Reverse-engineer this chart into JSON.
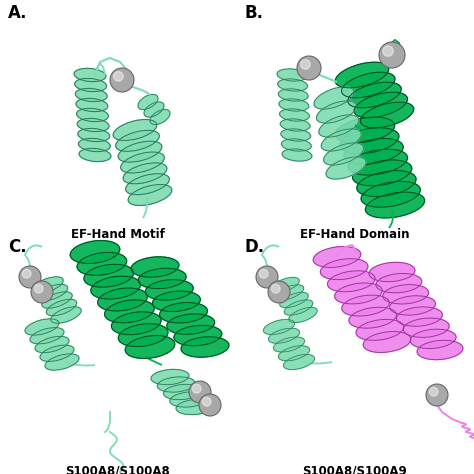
{
  "background_color": "#ffffff",
  "panel_labels": [
    "A.",
    "B.",
    "C.",
    "D."
  ],
  "panel_label_fontsize": 12,
  "panel_label_fontweight": "bold",
  "captions": [
    "EF-Hand Motif",
    "EF-Hand Domain",
    "S100A8/S100A8",
    "S100A8/S100A9"
  ],
  "caption_fontsize": 8.5,
  "caption_fontweight": "bold",
  "color_light_green": "#7DDCB0",
  "color_dark_green": "#00B050",
  "color_pink": "#EE82EE",
  "color_gray_sphere": "#A8A8A8",
  "color_sphere_edge": "#666666",
  "figsize": [
    4.74,
    4.74
  ],
  "dpi": 100
}
